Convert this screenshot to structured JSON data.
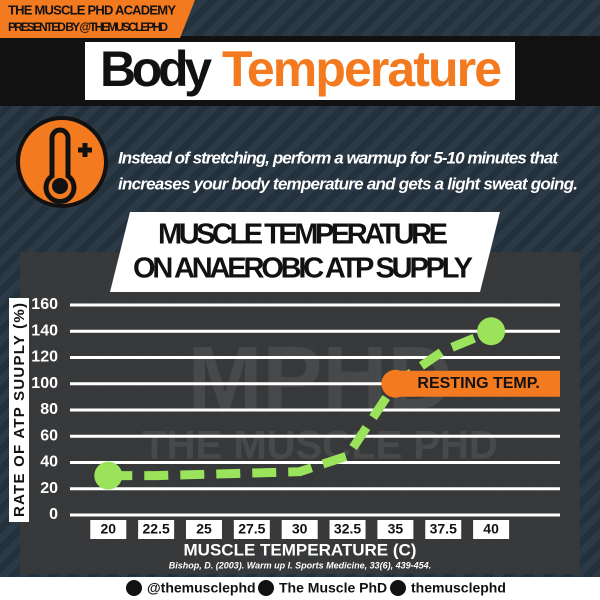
{
  "header": {
    "academy": "THE MUSCLE PHD ACADEMY",
    "presented_by": "PRESENTED BY @THEMUSCLEPHD",
    "title_first": "Body",
    "title_second": "Temperature"
  },
  "tip": [
    "Instead of stretching, perform a warmup for 5-10 minutes that",
    "increases your body temperature and gets a light sweat going."
  ],
  "watermark": [
    "MPHD",
    "THE MUSCLE PHD"
  ],
  "chart_data": {
    "type": "line",
    "title": [
      "MUSCLE TEMPERATURE",
      "ON ANAEROBIC ATP SUPPLY"
    ],
    "x_label": "MUSCLE TEMPERATURE (C)",
    "y_label": "RATE OF ATP SUUPLY (%)",
    "x": [
      20,
      22.5,
      25,
      27.5,
      30,
      32.5,
      35,
      37.5,
      40
    ],
    "series": [
      {
        "color": "#9be35a",
        "values": [
          30,
          30,
          31,
          32,
          33,
          45,
          100,
          125,
          140
        ]
      }
    ],
    "xlim": [
      18,
      43.6
    ],
    "xticks": [
      20,
      22.5,
      25,
      27.5,
      30,
      32.5,
      35,
      37.5,
      40
    ],
    "ylim": [
      0,
      160
    ],
    "yticks": [
      0,
      20,
      40,
      60,
      80,
      100,
      120,
      140,
      160
    ],
    "grid": true,
    "annotation": {
      "text": "RESTING TEMP.",
      "x": 35,
      "y": 100,
      "color": "#f47a20"
    },
    "citation": "Bishop, D. (2003). Warm up I. Sports Medicine, 33(6), 439-454."
  },
  "footer": {
    "instagram": "@themusclephd",
    "facebook": "The Muscle PhD",
    "snapchat": "themusclephd"
  }
}
